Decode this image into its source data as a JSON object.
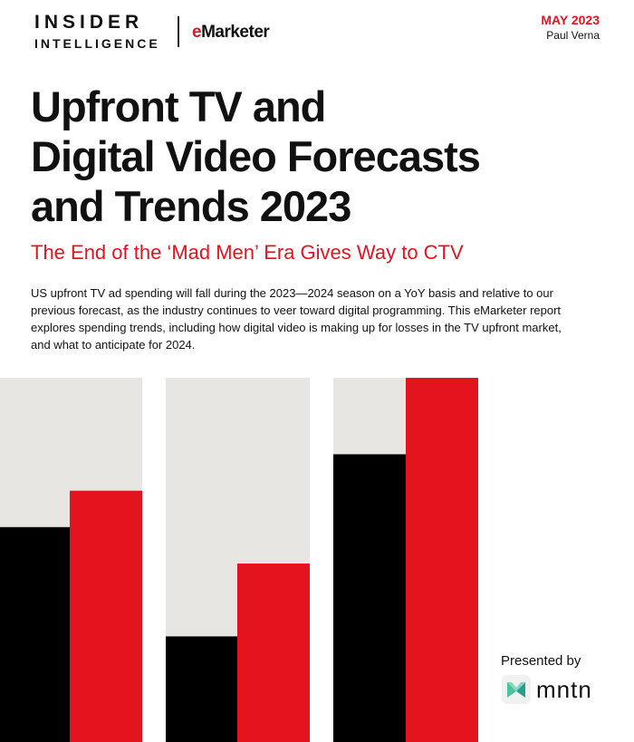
{
  "header": {
    "logo_line1": "INSIDER",
    "logo_line2": "INTELLIGENCE",
    "emarketer_e": "e",
    "emarketer_rest": "Marketer",
    "date": "MAY 2023",
    "author": "Paul Verna"
  },
  "title_lines": [
    "Upfront TV and",
    "Digital Video Forecasts",
    "and Trends 2023"
  ],
  "subtitle": "The End of the ‘Mad Men’ Era Gives Way to CTV",
  "summary": "US upfront TV ad spending will fall during the 2023—2024 season on a YoY basis and relative to our previous forecast, as the industry continues to veer toward digital programming. This eMarketer report explores spending trends, including how digital video is making up for losses in the TV upfront market, and what to anticipate for 2024.",
  "decorative_bars": [
    {
      "black_fill": 0.59,
      "red_fill": 0.69
    },
    {
      "black_fill": 0.29,
      "red_fill": 0.49
    },
    {
      "black_fill": 0.79,
      "red_fill": 1.0
    }
  ],
  "colors": {
    "red": "#e3141e",
    "black": "#000000",
    "gray": "#e7e6e2"
  },
  "sponsor": {
    "presented_by": "Presented by",
    "name": "mntn",
    "icon": "mntn-logo-icon"
  }
}
